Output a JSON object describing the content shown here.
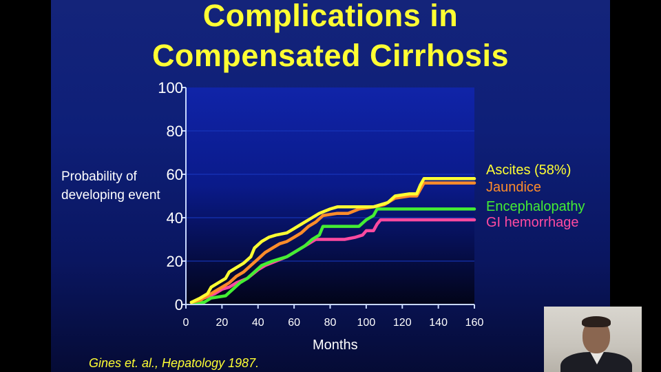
{
  "slide": {
    "title_line1": "Complications in",
    "title_line2": "Compensated Cirrhosis",
    "citation": "Gines et. al., Hepatology 1987."
  },
  "chart_data": {
    "type": "line",
    "xlabel": "Months",
    "ylabel": "Probability of developing event",
    "xlim": [
      0,
      160
    ],
    "ylim": [
      0,
      100
    ],
    "xticks": [
      0,
      20,
      40,
      60,
      80,
      100,
      120,
      140,
      160
    ],
    "yticks": [
      0,
      20,
      40,
      60,
      80,
      100
    ],
    "grid": false,
    "legend": "right",
    "series": [
      {
        "name": "Ascites (58%)",
        "color": "#ffff33",
        "points": [
          [
            3,
            1
          ],
          [
            8,
            3
          ],
          [
            12,
            5
          ],
          [
            14,
            8
          ],
          [
            18,
            10
          ],
          [
            22,
            12
          ],
          [
            24,
            15
          ],
          [
            28,
            17
          ],
          [
            32,
            19
          ],
          [
            36,
            22
          ],
          [
            38,
            26
          ],
          [
            42,
            29
          ],
          [
            46,
            31
          ],
          [
            50,
            32
          ],
          [
            56,
            33
          ],
          [
            60,
            35
          ],
          [
            64,
            37
          ],
          [
            70,
            40
          ],
          [
            74,
            42
          ],
          [
            80,
            44
          ],
          [
            84,
            45
          ],
          [
            96,
            45
          ],
          [
            104,
            45
          ],
          [
            112,
            47
          ],
          [
            116,
            50
          ],
          [
            124,
            51
          ],
          [
            128,
            51
          ],
          [
            130,
            55
          ],
          [
            132,
            58
          ],
          [
            160,
            58
          ]
        ]
      },
      {
        "name": "Jaundice",
        "color": "#ff8c2a",
        "points": [
          [
            3,
            1
          ],
          [
            8,
            2
          ],
          [
            12,
            4
          ],
          [
            16,
            6
          ],
          [
            20,
            8
          ],
          [
            24,
            10
          ],
          [
            28,
            13
          ],
          [
            32,
            15
          ],
          [
            36,
            18
          ],
          [
            40,
            21
          ],
          [
            44,
            24
          ],
          [
            48,
            26
          ],
          [
            52,
            28
          ],
          [
            56,
            29
          ],
          [
            60,
            31
          ],
          [
            64,
            33
          ],
          [
            68,
            36
          ],
          [
            72,
            38
          ],
          [
            76,
            41
          ],
          [
            84,
            42
          ],
          [
            90,
            42
          ],
          [
            96,
            44
          ],
          [
            104,
            45
          ],
          [
            110,
            46
          ],
          [
            116,
            49
          ],
          [
            124,
            50
          ],
          [
            128,
            50
          ],
          [
            130,
            53
          ],
          [
            132,
            56
          ],
          [
            160,
            56
          ]
        ]
      },
      {
        "name": "Encephalopathy",
        "color": "#44ee33",
        "points": [
          [
            3,
            1
          ],
          [
            10,
            1
          ],
          [
            14,
            3
          ],
          [
            22,
            4
          ],
          [
            26,
            7
          ],
          [
            30,
            10
          ],
          [
            34,
            12
          ],
          [
            38,
            15
          ],
          [
            42,
            18
          ],
          [
            48,
            20
          ],
          [
            56,
            22
          ],
          [
            60,
            24
          ],
          [
            66,
            27
          ],
          [
            70,
            30
          ],
          [
            74,
            32
          ],
          [
            76,
            36
          ],
          [
            96,
            36
          ],
          [
            100,
            39
          ],
          [
            104,
            41
          ],
          [
            106,
            44
          ],
          [
            120,
            44
          ],
          [
            160,
            44
          ]
        ]
      },
      {
        "name": "GI hemorrhage",
        "color": "#ff4aa0",
        "points": [
          [
            3,
            1
          ],
          [
            10,
            3
          ],
          [
            16,
            5
          ],
          [
            20,
            7
          ],
          [
            24,
            8
          ],
          [
            28,
            10
          ],
          [
            34,
            12
          ],
          [
            40,
            16
          ],
          [
            44,
            18
          ],
          [
            50,
            20
          ],
          [
            56,
            22
          ],
          [
            60,
            24
          ],
          [
            64,
            26
          ],
          [
            68,
            28
          ],
          [
            72,
            30
          ],
          [
            88,
            30
          ],
          [
            94,
            31
          ],
          [
            98,
            32
          ],
          [
            100,
            34
          ],
          [
            104,
            34
          ],
          [
            106,
            37
          ],
          [
            108,
            39
          ],
          [
            160,
            39
          ]
        ]
      }
    ]
  }
}
